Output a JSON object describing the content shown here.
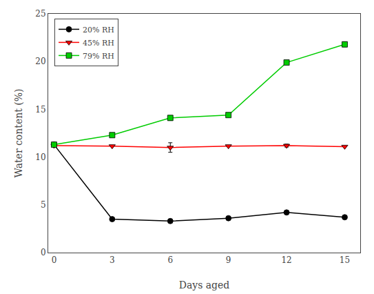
{
  "chart_data": {
    "type": "line",
    "xlabel": "Days aged",
    "ylabel": "Water content (%)",
    "x": [
      0,
      3,
      6,
      9,
      12,
      15
    ],
    "series": [
      {
        "name": "20% RH",
        "color": "black",
        "marker": "circle",
        "values": [
          11.3,
          3.5,
          3.3,
          3.6,
          4.2,
          3.7
        ],
        "yerr": [
          0.0,
          0.0,
          0.0,
          0.0,
          0.0,
          0.0
        ]
      },
      {
        "name": "45% RH",
        "color": "red",
        "marker": "triangle-down",
        "values": [
          11.2,
          11.15,
          11.0,
          11.15,
          11.2,
          11.1
        ],
        "yerr": [
          0.0,
          0.0,
          0.5,
          0.0,
          0.15,
          0.0
        ]
      },
      {
        "name": "79% RH",
        "color": "#00cc00",
        "marker": "square",
        "values": [
          11.3,
          12.3,
          14.1,
          14.4,
          19.9,
          21.8
        ],
        "yerr": [
          0.0,
          0.0,
          0.25,
          0.0,
          0.2,
          0.25
        ]
      }
    ],
    "xlim": [
      -0.3,
      15.8
    ],
    "ylim": [
      0,
      25
    ],
    "xticks": [
      0,
      3,
      6,
      9,
      12,
      15
    ],
    "yticks": [
      0,
      5,
      10,
      15,
      20,
      25
    ],
    "grid": false,
    "legend": "upper left"
  }
}
